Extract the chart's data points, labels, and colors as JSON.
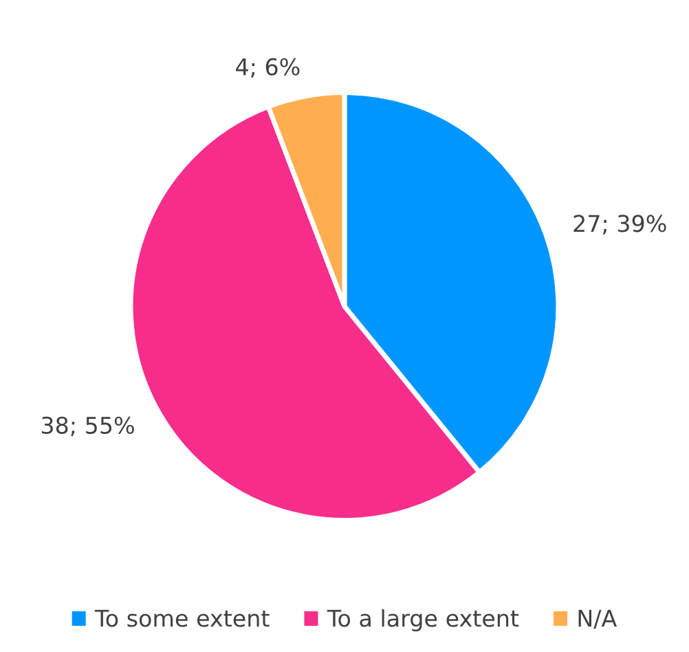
{
  "chart_data": {
    "type": "pie",
    "categories": [
      "To some extent",
      "To a large extent",
      "N/A"
    ],
    "values": [
      27,
      38,
      4
    ],
    "value_labels": [
      "27; 39%",
      "38; 55%",
      "4; 6%"
    ],
    "colors": [
      "#0096ff",
      "#f72d8c",
      "#ffae4f"
    ],
    "legend": "bottom"
  }
}
